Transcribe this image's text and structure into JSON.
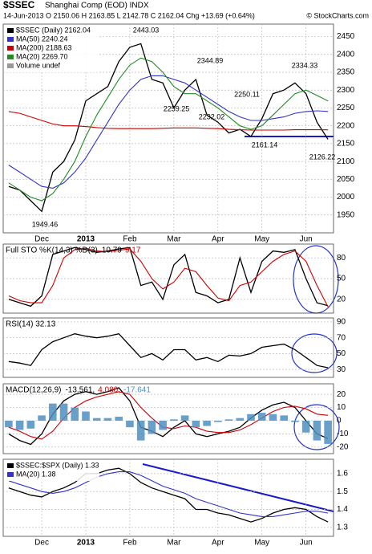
{
  "header": {
    "symbol": "$SSEC",
    "name": "Shanghai Comp (EOD) INDX",
    "quote": "14-Jun-2013  O 2150.06  H 2163.85  L 2142.78  C 2162.04  Chg +13.69 (+0.64%)",
    "credit": "© StockCharts.com"
  },
  "chart_data": [
    {
      "type": "line",
      "categories": [
        null,
        null,
        null,
        "Dec",
        null,
        null,
        null,
        "2013",
        null,
        null,
        null,
        "Feb",
        null,
        null,
        null,
        "Mar",
        null,
        null,
        null,
        "Apr",
        null,
        null,
        null,
        "May",
        null,
        null,
        null,
        "Jun",
        null,
        null
      ],
      "ylim": [
        1900,
        2485
      ],
      "yticks": [
        1950,
        2000,
        2050,
        2100,
        2150,
        2200,
        2250,
        2300,
        2350,
        2400,
        2450
      ],
      "grid": true,
      "legend_extra": "Volume undef",
      "annotations": [
        "2443.03",
        "2344.89",
        "2334.33",
        "2259.25",
        "2232.02",
        "2250.11",
        "2161.14",
        "2126.22",
        "1949.46"
      ],
      "series": [
        {
          "name": "$SSEC (Daily) 2162.04",
          "color": "#000000",
          "values": [
            2030,
            2020,
            1990,
            1960,
            2070,
            2100,
            2160,
            2270,
            2290,
            2310,
            2380,
            2420,
            2430,
            2330,
            2320,
            2250,
            2300,
            2330,
            2230,
            2210,
            2180,
            2190,
            2170,
            2220,
            2290,
            2300,
            2320,
            2290,
            2210,
            2162.04
          ]
        },
        {
          "name": "MA(50) 2240.24",
          "color": "#3333cc",
          "values": [
            2090,
            2070,
            2050,
            2030,
            2025,
            2040,
            2070,
            2110,
            2160,
            2210,
            2260,
            2300,
            2330,
            2340,
            2340,
            2330,
            2320,
            2300,
            2280,
            2260,
            2240,
            2225,
            2215,
            2215,
            2220,
            2225,
            2235,
            2240,
            2242,
            2240.24
          ]
        },
        {
          "name": "MA(200) 2188.63",
          "color": "#cc0000",
          "values": [
            2240,
            2235,
            2225,
            2215,
            2205,
            2200,
            2200,
            2198,
            2195,
            2193,
            2192,
            2192,
            2192,
            2192,
            2193,
            2194,
            2194,
            2194,
            2193,
            2192,
            2190,
            2189,
            2188,
            2188,
            2188,
            2188,
            2189,
            2189,
            2189,
            2188.63
          ]
        },
        {
          "name": "MA(20) 2269.70",
          "color": "#228b22",
          "values": [
            2040,
            2020,
            2000,
            1990,
            2010,
            2050,
            2100,
            2170,
            2230,
            2280,
            2330,
            2370,
            2390,
            2380,
            2350,
            2310,
            2290,
            2290,
            2270,
            2250,
            2225,
            2200,
            2190,
            2200,
            2230,
            2260,
            2290,
            2300,
            2285,
            2269.7
          ]
        }
      ]
    },
    {
      "type": "line",
      "label": "Full STO %K(14,3) %D(3)",
      "ylim": [
        0,
        100
      ],
      "yticks": [
        20,
        50,
        80
      ],
      "grid": true,
      "series": [
        {
          "label": "10.79",
          "color": "#000000",
          "values": [
            20,
            15,
            10,
            25,
            85,
            90,
            95,
            92,
            88,
            90,
            93,
            95,
            40,
            45,
            20,
            70,
            85,
            30,
            25,
            15,
            20,
            80,
            30,
            75,
            90,
            88,
            92,
            50,
            15,
            10.79
          ]
        },
        {
          "label": "9.17",
          "color": "#cc0000",
          "values": [
            25,
            18,
            15,
            15,
            40,
            80,
            92,
            94,
            90,
            89,
            91,
            93,
            75,
            50,
            35,
            45,
            65,
            60,
            40,
            22,
            18,
            40,
            45,
            60,
            75,
            85,
            90,
            75,
            40,
            9.17
          ]
        }
      ]
    },
    {
      "type": "line",
      "label": "RSI(14) 32.13",
      "ylim": [
        20,
        95
      ],
      "yticks": [
        30,
        50,
        70,
        90
      ],
      "grid": true,
      "series": [
        {
          "color": "#000000",
          "values": [
            40,
            38,
            35,
            55,
            65,
            70,
            75,
            72,
            70,
            72,
            75,
            60,
            45,
            50,
            42,
            55,
            55,
            42,
            45,
            40,
            48,
            47,
            50,
            58,
            60,
            62,
            55,
            45,
            35,
            32.13
          ]
        }
      ]
    },
    {
      "type": "line",
      "label": "MACD(12,26,9)",
      "ylim": [
        -25,
        28
      ],
      "yticks": [
        -20,
        -10,
        0,
        10,
        20
      ],
      "grid": true,
      "series": [
        {
          "label": "-13.561,",
          "color": "#000000",
          "values": [
            -10,
            -15,
            -18,
            -10,
            5,
            15,
            20,
            22,
            20,
            22,
            25,
            15,
            -5,
            -8,
            -12,
            -5,
            0,
            -10,
            -12,
            -10,
            -8,
            -5,
            2,
            8,
            12,
            14,
            10,
            0,
            -10,
            -13.561
          ]
        },
        {
          "label": "4.080,",
          "color": "#cc0000",
          "values": [
            -5,
            -8,
            -12,
            -14,
            -8,
            2,
            10,
            15,
            18,
            20,
            22,
            20,
            10,
            2,
            -5,
            -6,
            -4,
            -5,
            -8,
            -9,
            -9,
            -7,
            -3,
            2,
            7,
            10,
            11,
            9,
            5,
            4.08
          ]
        },
        {
          "label": "-17.641",
          "color": "#4f8fc0",
          "kind": "bar",
          "values": [
            -5,
            -7,
            -6,
            4,
            13,
            13,
            10,
            7,
            2,
            2,
            3,
            -5,
            -15,
            -10,
            -7,
            1,
            4,
            -5,
            -4,
            -1,
            1,
            2,
            5,
            6,
            5,
            4,
            -1,
            -9,
            -15,
            -17.641
          ]
        }
      ]
    },
    {
      "type": "line",
      "categories": [
        null,
        null,
        null,
        "Dec",
        null,
        null,
        null,
        "2013",
        null,
        null,
        null,
        "Feb",
        null,
        null,
        null,
        "Mar",
        null,
        null,
        null,
        "Apr",
        null,
        null,
        null,
        "May",
        null,
        null,
        null,
        "Jun",
        null,
        null
      ],
      "ylim": [
        1.25,
        1.68
      ],
      "yticks": [
        1.3,
        1.4,
        1.5,
        1.6
      ],
      "grid": true,
      "series": [
        {
          "name": "$SSEC:$SPX (Daily) 1.33",
          "color": "#000000",
          "values": [
            1.52,
            1.5,
            1.48,
            1.47,
            1.5,
            1.52,
            1.55,
            1.6,
            1.6,
            1.62,
            1.63,
            1.6,
            1.55,
            1.52,
            1.5,
            1.48,
            1.46,
            1.4,
            1.4,
            1.38,
            1.37,
            1.35,
            1.33,
            1.35,
            1.38,
            1.4,
            1.41,
            1.4,
            1.36,
            1.33
          ]
        },
        {
          "name": "MA(20) 1.38",
          "color": "#3333cc",
          "values": [
            1.56,
            1.54,
            1.52,
            1.5,
            1.49,
            1.5,
            1.52,
            1.55,
            1.58,
            1.6,
            1.61,
            1.61,
            1.59,
            1.56,
            1.53,
            1.51,
            1.49,
            1.46,
            1.44,
            1.42,
            1.4,
            1.38,
            1.37,
            1.36,
            1.36,
            1.37,
            1.38,
            1.39,
            1.39,
            1.38
          ]
        }
      ]
    }
  ]
}
